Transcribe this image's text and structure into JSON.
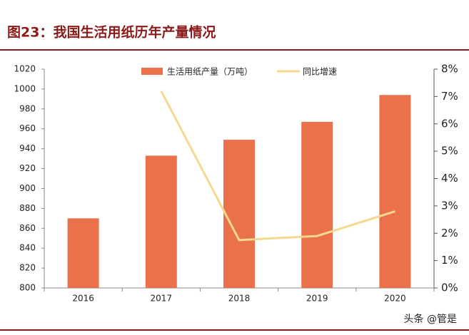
{
  "chart_data": {
    "type": "bar-line",
    "title": "图23：我国生活用纸历年产量情况",
    "categories": [
      "2016",
      "2017",
      "2018",
      "2019",
      "2020"
    ],
    "series": [
      {
        "name": "生活用纸产量（万吨）",
        "type": "bar",
        "color": "#ea7149",
        "values": [
          870,
          933,
          949,
          967,
          994
        ]
      },
      {
        "name": "同比增速",
        "type": "line",
        "color": "#f5d98e",
        "axis": "y2",
        "values": [
          null,
          7.2,
          1.75,
          1.9,
          2.8
        ]
      }
    ],
    "ylim": [
      800,
      1020
    ],
    "yticks": [
      800,
      820,
      840,
      860,
      880,
      900,
      920,
      940,
      960,
      980,
      1000,
      1020
    ],
    "y2lim": [
      0,
      8
    ],
    "y2ticks": [
      {
        "value": 0,
        "label": "0%"
      },
      {
        "value": 1,
        "label": "1%"
      },
      {
        "value": 2,
        "label": "2%"
      },
      {
        "value": 3,
        "label": "3%"
      },
      {
        "value": 4,
        "label": "4%"
      },
      {
        "value": 5,
        "label": "5%"
      },
      {
        "value": 6,
        "label": "6%"
      },
      {
        "value": 7,
        "label": "7%"
      },
      {
        "value": 8,
        "label": "8%"
      }
    ],
    "legend": "top",
    "watermark": "头条 @管是"
  }
}
